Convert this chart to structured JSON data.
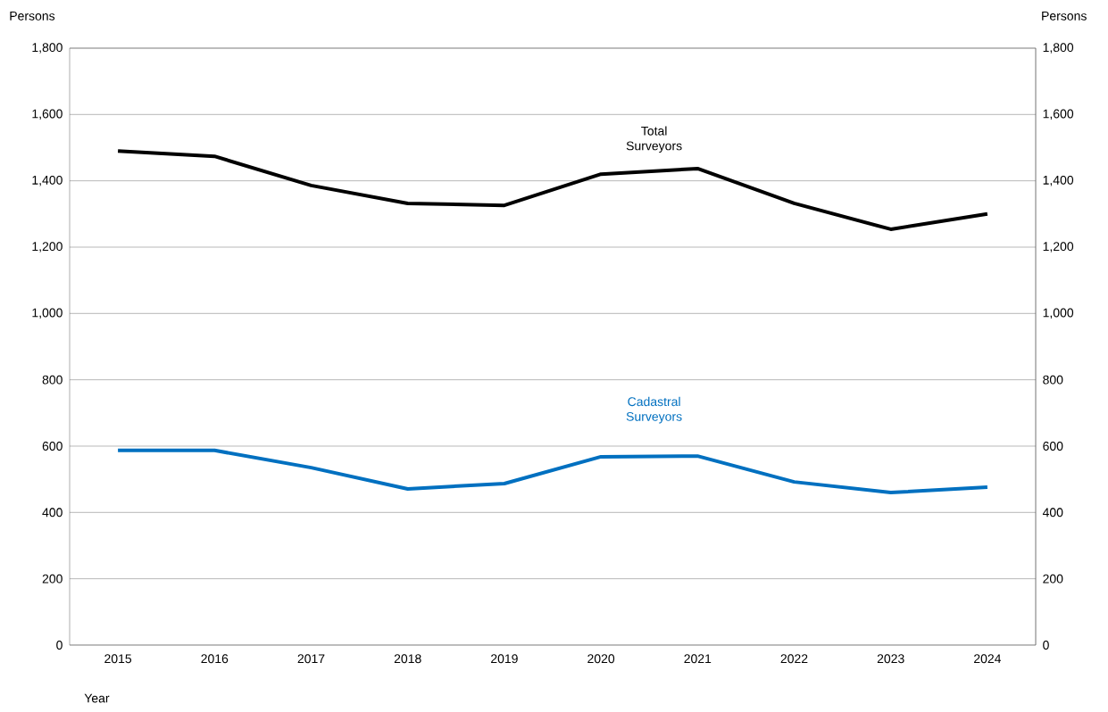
{
  "chart_data": {
    "type": "line",
    "categories": [
      "2015",
      "2016",
      "2017",
      "2018",
      "2019",
      "2020",
      "2021",
      "2022",
      "2023",
      "2024"
    ],
    "series": [
      {
        "name": "Total Surveyors",
        "color": "#000000",
        "values": [
          1490,
          1474,
          1386,
          1332,
          1326,
          1420,
          1437,
          1332,
          1254,
          1300
        ]
      },
      {
        "name": "Cadastral Surveyors",
        "color": "#0070c0",
        "values": [
          587,
          587,
          535,
          471,
          487,
          568,
          570,
          492,
          460,
          476
        ]
      }
    ],
    "xlabel": "Year",
    "ylabel": "Persons",
    "y2label": "Persons",
    "ylim": [
      0,
      1800
    ],
    "yticks": [
      0,
      200,
      400,
      600,
      800,
      {
        "value": 1000,
        "label": "1,000"
      },
      {
        "value": 1200,
        "label": "1,200"
      },
      {
        "value": 1400,
        "label": "1,400"
      },
      {
        "value": 1600,
        "label": "1,600"
      },
      {
        "value": 1800,
        "label": "1,800"
      }
    ],
    "y2lim": [
      0,
      1800
    ],
    "y2ticks": [
      0,
      200,
      400,
      600,
      800,
      {
        "value": 1000,
        "label": "1,000"
      },
      {
        "value": 1200,
        "label": "1,200"
      },
      {
        "value": 1400,
        "label": "1,400"
      },
      {
        "value": 1600,
        "label": "1,600"
      },
      {
        "value": 1800,
        "label": "1,800"
      }
    ],
    "grid": "y",
    "legend": false,
    "marker": "none",
    "line_style": "solid"
  }
}
